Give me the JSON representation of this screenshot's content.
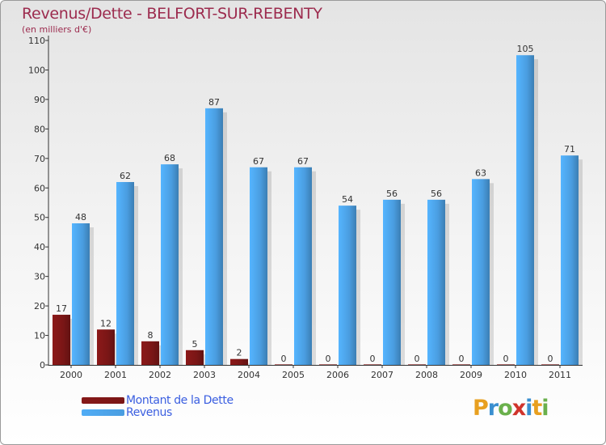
{
  "chart_data": {
    "type": "bar",
    "title": "Revenus/Dette - BELFORT-SUR-REBENTY",
    "subtitle": "(en milliers d'€)",
    "xlabel": "",
    "ylabel": "",
    "categories": [
      "2000",
      "2001",
      "2002",
      "2003",
      "2004",
      "2005",
      "2006",
      "2007",
      "2008",
      "2009",
      "2010",
      "2011"
    ],
    "series": [
      {
        "name": "Montant de la Dette",
        "color": "#7a1616",
        "values": [
          17,
          12,
          8,
          5,
          2,
          0,
          0,
          0,
          0,
          0,
          0,
          0
        ]
      },
      {
        "name": "Revenus",
        "color": "#4a9de0",
        "values": [
          48,
          62,
          68,
          87,
          67,
          67,
          54,
          56,
          56,
          63,
          105,
          71
        ]
      }
    ],
    "ylim": [
      0,
      110
    ],
    "yticks": [
      0,
      10,
      20,
      30,
      40,
      50,
      60,
      70,
      80,
      90,
      100,
      110
    ],
    "grid": false,
    "legend_position": "bottom-left"
  },
  "branding": {
    "logo_letters": [
      "P",
      "r",
      "o",
      "x",
      "i",
      "t",
      "i"
    ],
    "logo_colors": [
      "#e8a020",
      "#3a8fd0",
      "#6ab04c",
      "#d0342c",
      "#3a8fd0",
      "#e8a020",
      "#6ab04c"
    ]
  }
}
